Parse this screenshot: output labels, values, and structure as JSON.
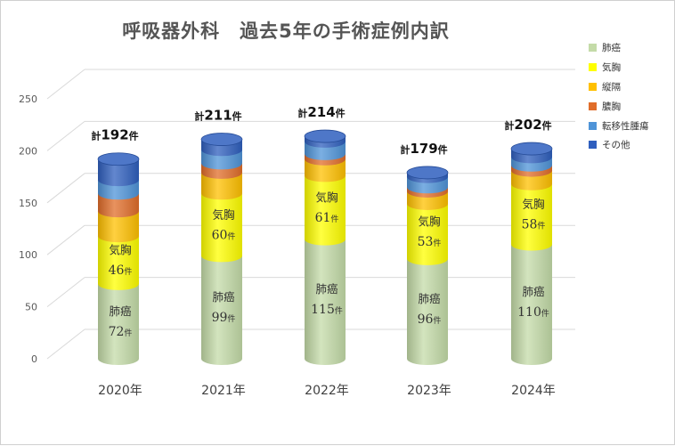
{
  "chart_data": {
    "type": "bar",
    "title": "呼吸器外科　過去5年の手術症例内訳",
    "categories": [
      "2020年",
      "2021年",
      "2022年",
      "2023年",
      "2024年"
    ],
    "ylim": [
      0,
      250
    ],
    "yticks": [
      0,
      50,
      100,
      150,
      200,
      250
    ],
    "grid": true,
    "legend_position": "right",
    "unit": "件",
    "total_prefix": "計",
    "totals": [
      192,
      211,
      214,
      179,
      202
    ],
    "series": [
      {
        "name": "肺癌",
        "color": "#c4dba8",
        "values": [
          72,
          99,
          115,
          96,
          110
        ],
        "labeled": true
      },
      {
        "name": "気胸",
        "color": "#ffff00",
        "values": [
          46,
          60,
          61,
          53,
          58
        ],
        "labeled": true
      },
      {
        "name": "縦隔",
        "color": "#ffc000",
        "values": [
          24,
          20,
          16,
          12,
          13
        ],
        "labeled": false
      },
      {
        "name": "膿胸",
        "color": "#e06d2a",
        "values": [
          17,
          9,
          5,
          4,
          5
        ],
        "labeled": false
      },
      {
        "name": "転移性腫瘍",
        "color": "#4f94d8",
        "values": [
          13,
          13,
          12,
          10,
          8
        ],
        "labeled": false
      },
      {
        "name": "その他",
        "color": "#2f5fbe",
        "values": [
          20,
          10,
          5,
          4,
          8
        ],
        "labeled": false
      }
    ]
  }
}
